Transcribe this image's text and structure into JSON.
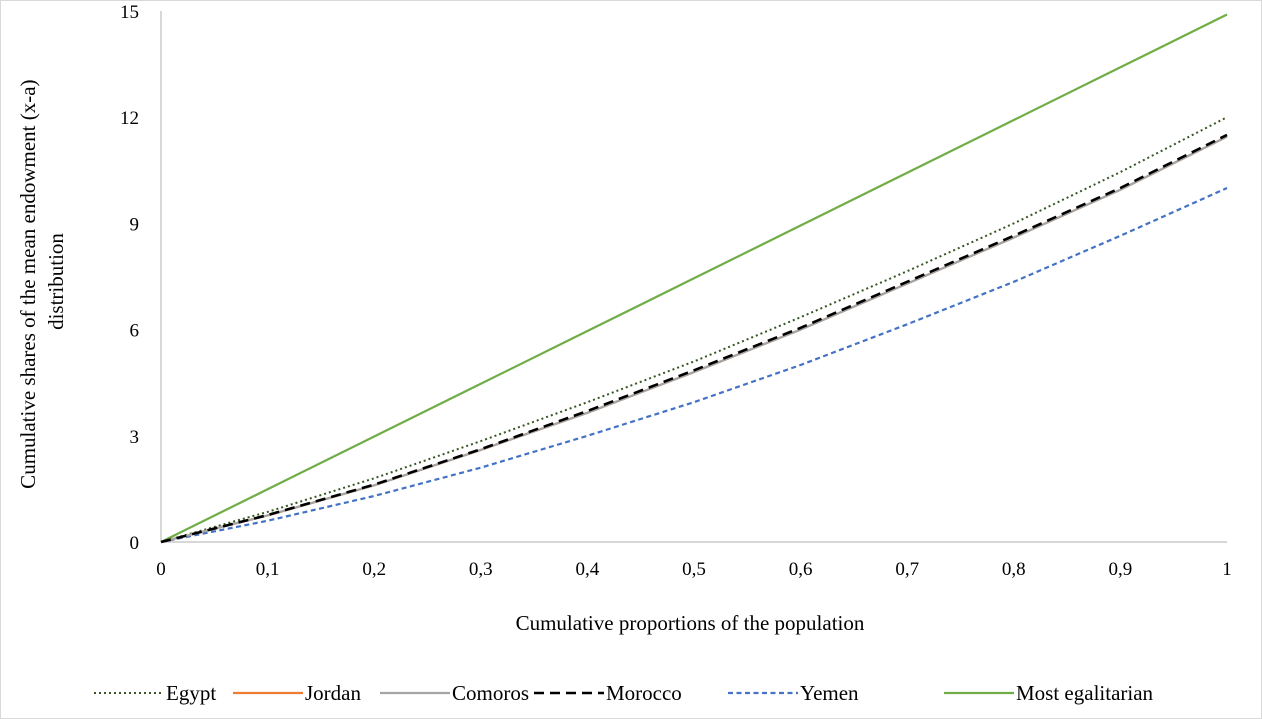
{
  "chart_data": {
    "type": "line",
    "title": "",
    "xlabel": "Cumulative proportions of the population",
    "ylabel_lines": [
      "Cumulative shares of the mean endowment (x-a)",
      "distribution"
    ],
    "x_ticks": [
      "0",
      "0,1",
      "0,2",
      "0,3",
      "0,4",
      "0,5",
      "0,6",
      "0,7",
      "0,8",
      "0,9",
      "1"
    ],
    "y_ticks": [
      "0",
      "3",
      "6",
      "9",
      "12",
      "15"
    ],
    "xlim": [
      0,
      1
    ],
    "ylim": [
      0,
      15
    ],
    "grid": false,
    "legend_position": "bottom",
    "x": [
      0,
      0.1,
      0.2,
      0.3,
      0.4,
      0.5,
      0.6,
      0.7,
      0.8,
      0.9,
      1.0
    ],
    "series": [
      {
        "name": "Egypt",
        "color": "#375623",
        "style": "dotted",
        "values": [
          0,
          0.85,
          1.8,
          2.85,
          3.95,
          5.1,
          6.35,
          7.65,
          9.0,
          10.45,
          12.0
        ]
      },
      {
        "name": "Jordan",
        "color": "#ed7d31",
        "style": "solid",
        "values": [
          0,
          0.75,
          1.6,
          2.6,
          3.65,
          4.8,
          6.0,
          7.3,
          8.6,
          9.95,
          11.45
        ]
      },
      {
        "name": "Comoros",
        "color": "#a5a5a5",
        "style": "solid",
        "values": [
          0,
          0.75,
          1.6,
          2.6,
          3.65,
          4.8,
          6.0,
          7.3,
          8.6,
          9.95,
          11.45
        ]
      },
      {
        "name": "Morocco",
        "color": "#000000",
        "style": "dashed",
        "values": [
          0,
          0.76,
          1.62,
          2.62,
          3.7,
          4.85,
          6.05,
          7.35,
          8.65,
          10.0,
          11.5
        ]
      },
      {
        "name": "Yemen",
        "color": "#4472c4",
        "style": "short-dashed",
        "values": [
          0,
          0.6,
          1.3,
          2.1,
          3.0,
          3.95,
          5.0,
          6.15,
          7.35,
          8.65,
          10.0
        ]
      },
      {
        "name": "Most egalitarian",
        "color": "#70ad47",
        "style": "solid",
        "values": [
          0,
          1.49,
          2.98,
          4.47,
          5.96,
          7.45,
          8.94,
          10.43,
          11.92,
          13.41,
          14.9
        ]
      }
    ]
  }
}
